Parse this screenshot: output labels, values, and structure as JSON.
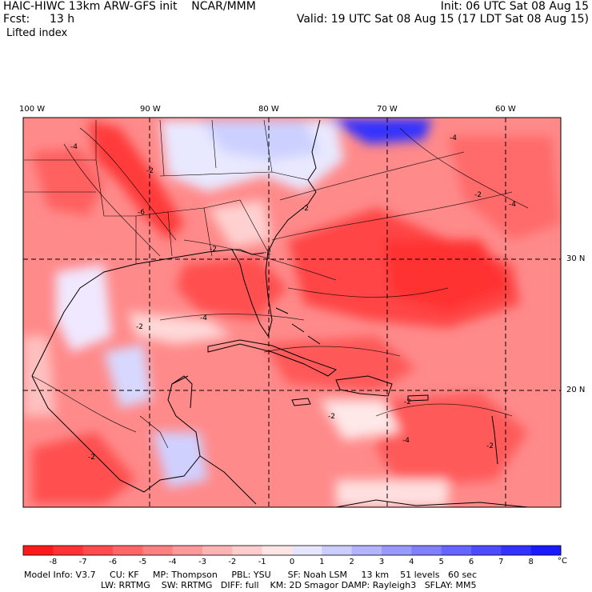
{
  "header": {
    "model_line": "HAIC-HIWC 13km ARW-GFS init    NCAR/MMM",
    "fcst_label": "Fcst:",
    "fcst_value": "13 h",
    "field": "Lifted index",
    "init": "Init: 06 UTC Sat 08 Aug 15",
    "valid": "Valid: 19 UTC Sat 08 Aug 15 (17 LDT Sat 08 Aug 15)"
  },
  "map": {
    "lon_labels": [
      "100 W",
      "90 W",
      "80 W",
      "70 W",
      "60 W"
    ],
    "lat_labels": [
      "30 N",
      "20 N"
    ],
    "contour_labels": [
      "-4",
      "-2",
      "-6",
      "-4",
      "-2",
      "-4",
      "-2",
      "-2",
      "-2",
      "-2",
      "-4",
      "-2",
      "-2",
      "-2",
      "-4",
      "-2"
    ]
  },
  "legend": {
    "tick_labels": [
      "-8",
      "-7",
      "-6",
      "-5",
      "-4",
      "-3",
      "-2",
      "-1",
      "0",
      "1",
      "2",
      "3",
      "4",
      "5",
      "6",
      "7",
      "8"
    ],
    "unit": "°C",
    "colors": [
      "#ff1a1a",
      "#ff3333",
      "#ff4d4d",
      "#ff6666",
      "#ff8080",
      "#ff9999",
      "#ffb3b3",
      "#ffcccc",
      "#ffe6e6",
      "#e6e6ff",
      "#ccccff",
      "#b3b3ff",
      "#9999ff",
      "#8080ff",
      "#6666ff",
      "#4d4dff",
      "#3333ff",
      "#1a1aff"
    ]
  },
  "model_info": {
    "line1": "Model Info: V3.7     CU: KF     MP: Thompson     PBL: YSU      SF: Noah LSM     13 km    51 levels   60 sec",
    "line2": "LW: RRTMG    SW: RRTMG   DIFF: full    KM: 2D Smagor DAMP: Rayleigh3   SFLAY: MM5"
  }
}
